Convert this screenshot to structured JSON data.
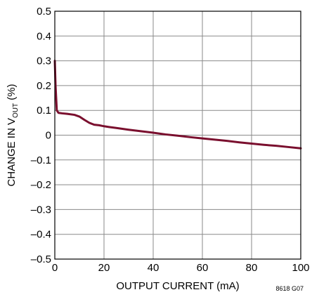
{
  "chart_data": {
    "type": "line",
    "title": "",
    "xlabel": "OUTPUT CURRENT (mA)",
    "ylabel_prefix": "CHANGE IN V",
    "ylabel_subscript": "OUT",
    "ylabel_suffix": " (%)",
    "xlim": [
      0,
      100
    ],
    "ylim": [
      -0.5,
      0.5
    ],
    "x_ticks": [
      0,
      20,
      40,
      60,
      80,
      100
    ],
    "y_ticks": [
      0.5,
      0.4,
      0.3,
      0.2,
      0.1,
      0,
      -0.1,
      -0.2,
      -0.3,
      -0.4,
      -0.5
    ],
    "x_tick_labels": [
      "0",
      "20",
      "40",
      "60",
      "80",
      "100"
    ],
    "y_tick_labels": [
      "0.5",
      "0.4",
      "0.3",
      "0.2",
      "0.1",
      "0",
      "–0.1",
      "–0.2",
      "–0.3",
      "–0.4",
      "–0.5"
    ],
    "grid": true,
    "series_color": "#7a0f2e",
    "series": [
      {
        "x": [
          0,
          0.3,
          0.8,
          1.5,
          3,
          5,
          8,
          10,
          12,
          14,
          16,
          18,
          20,
          22,
          25,
          30,
          35,
          40,
          45,
          50,
          55,
          60,
          65,
          70,
          75,
          80,
          85,
          90,
          95,
          100
        ],
        "y": [
          0.3,
          0.2,
          0.1,
          0.09,
          0.088,
          0.086,
          0.082,
          0.075,
          0.062,
          0.05,
          0.042,
          0.04,
          0.036,
          0.033,
          0.029,
          0.022,
          0.016,
          0.01,
          0.003,
          -0.002,
          -0.008,
          -0.013,
          -0.018,
          -0.023,
          -0.029,
          -0.034,
          -0.039,
          -0.043,
          -0.048,
          -0.053
        ]
      }
    ]
  },
  "figure_id": "8618 G07"
}
